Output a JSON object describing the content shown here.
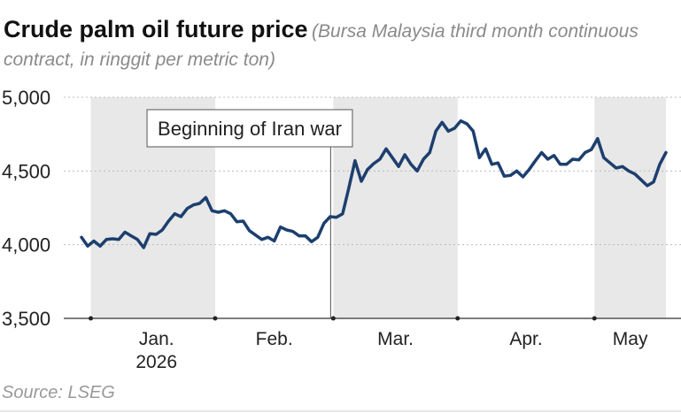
{
  "chart_data": {
    "type": "line",
    "title": "Crude palm oil future price",
    "subtitle": "(Bursa Malaysia third month continuous contract, in ringgit per metric ton)",
    "source": "Source: LSEG",
    "annotation": "Beginning of Iran war",
    "year": "2026",
    "color": "#1d3f6e",
    "ylim": [
      3500,
      5000
    ],
    "yticks": [
      {
        "value": 3500,
        "label": "3,500"
      },
      {
        "value": 4000,
        "label": "4,000"
      },
      {
        "value": 4500,
        "label": "4,500"
      },
      {
        "value": 5000,
        "label": "5,000"
      }
    ],
    "grid": true,
    "months": [
      {
        "label": null,
        "values": [
          4050,
          3990
        ]
      },
      {
        "label": "Jan.",
        "values": [
          4025,
          3990,
          4035,
          4040,
          4035,
          4085,
          4060,
          4035,
          3980,
          4075,
          4070,
          4100,
          4160,
          4210,
          4190,
          4245,
          4270,
          4280,
          4320,
          4230
        ]
      },
      {
        "label": "Feb.",
        "values": [
          4220,
          4230,
          4210,
          4155,
          4160,
          4095,
          4065,
          4035,
          4050,
          4025,
          4120,
          4100,
          4090,
          4060,
          4060,
          4020,
          4050,
          4145,
          4190
        ]
      },
      {
        "label": "Mar.",
        "values": [
          4185,
          4210,
          4385,
          4570,
          4430,
          4510,
          4550,
          4580,
          4650,
          4590,
          4530,
          4610,
          4545,
          4500,
          4580,
          4625,
          4770,
          4830,
          4770,
          4790
        ]
      },
      {
        "label": "Apr.",
        "values": [
          4840,
          4820,
          4770,
          4590,
          4650,
          4545,
          4555,
          4465,
          4470,
          4500,
          4460,
          4510,
          4570,
          4625,
          4580,
          4605,
          4545,
          4545,
          4580,
          4575,
          4625,
          4645
        ]
      },
      {
        "label": "May",
        "values": [
          4720,
          4590,
          4555,
          4520,
          4530,
          4500,
          4480,
          4440,
          4400,
          4425,
          4545,
          4625
        ]
      }
    ]
  }
}
